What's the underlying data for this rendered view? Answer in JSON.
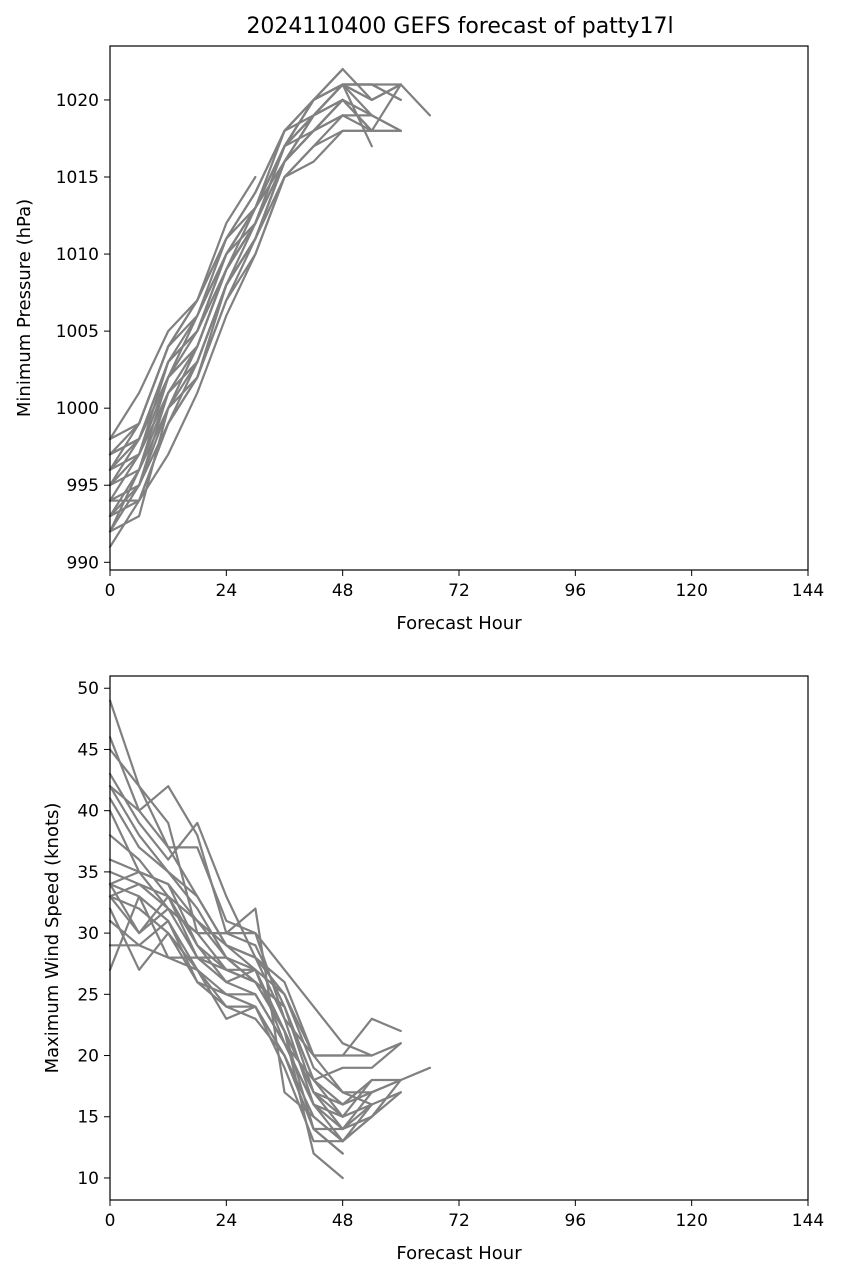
{
  "title": "2024110400 GEFS forecast of patty17l",
  "colors": {
    "member_line": "#808080",
    "axis": "#000000",
    "background": "#ffffff"
  },
  "chart_data": [
    {
      "type": "line",
      "id": "pressure",
      "title": "2024110400 GEFS forecast of patty17l",
      "xlabel": "Forecast Hour",
      "ylabel": "Minimum Pressure (hPa)",
      "xlim": [
        0,
        144
      ],
      "ylim": [
        989.5,
        1023.5
      ],
      "xticks": [
        0,
        24,
        48,
        72,
        96,
        120,
        144
      ],
      "yticks": [
        990,
        995,
        1000,
        1005,
        1010,
        1015,
        1020
      ],
      "grid": false,
      "series": [
        {
          "x": [
            0,
            6,
            12,
            18,
            24,
            30,
            36,
            42,
            48
          ],
          "values": [
            991,
            994,
            999,
            1003,
            1008,
            1012,
            1017,
            1020,
            1022
          ]
        },
        {
          "x": [
            0,
            6,
            12,
            18,
            24,
            30,
            36,
            42,
            48,
            54,
            60,
            66
          ],
          "values": [
            992,
            996,
            1001,
            1004,
            1009,
            1013,
            1016,
            1019,
            1021,
            1021,
            1021,
            1019
          ]
        },
        {
          "x": [
            0,
            6,
            12,
            18,
            24,
            30,
            36,
            42,
            48,
            54,
            60
          ],
          "values": [
            993,
            995,
            1000,
            1003,
            1008,
            1011,
            1016,
            1018,
            1020,
            1018,
            1021
          ]
        },
        {
          "x": [
            0,
            6,
            12,
            18,
            24,
            30,
            36,
            42,
            48,
            54
          ],
          "values": [
            994,
            997,
            1002,
            1005,
            1009,
            1012,
            1017,
            1019,
            1021,
            1017
          ]
        },
        {
          "x": [
            0,
            6,
            12,
            18,
            24,
            30,
            36,
            42,
            48,
            54,
            60
          ],
          "values": [
            995,
            998,
            1003,
            1006,
            1010,
            1013,
            1017,
            1020,
            1021,
            1020,
            1021
          ]
        },
        {
          "x": [
            0,
            6,
            12,
            18,
            24,
            30,
            36,
            42,
            48,
            54,
            60
          ],
          "values": [
            996,
            999,
            1004,
            1007,
            1011,
            1014,
            1018,
            1020,
            1021,
            1021,
            1020
          ]
        },
        {
          "x": [
            0,
            6,
            12,
            18,
            24,
            30
          ],
          "values": [
            998,
            1001,
            1005,
            1007,
            1012,
            1015
          ]
        },
        {
          "x": [
            0,
            6,
            12,
            18,
            24,
            30,
            36,
            42,
            48
          ],
          "values": [
            997,
            999,
            1004,
            1006,
            1011,
            1013,
            1018,
            1019,
            1020
          ]
        },
        {
          "x": [
            0,
            6,
            12,
            18,
            24,
            30,
            36,
            42,
            48,
            54,
            60
          ],
          "values": [
            992,
            993,
            1000,
            1002,
            1007,
            1010,
            1015,
            1016,
            1018,
            1018,
            1018
          ]
        },
        {
          "x": [
            0,
            6,
            12,
            18,
            24,
            30,
            36,
            42,
            48,
            54,
            60
          ],
          "values": [
            994,
            994,
            997,
            1001,
            1006,
            1010,
            1015,
            1017,
            1019,
            1019,
            1018
          ]
        },
        {
          "x": [
            0,
            6,
            12,
            18,
            24,
            30,
            36,
            42,
            48,
            54
          ],
          "values": [
            995,
            997,
            1001,
            1003,
            1008,
            1011,
            1016,
            1018,
            1020,
            1018
          ]
        },
        {
          "x": [
            0,
            6,
            12,
            18,
            24,
            30,
            36,
            42,
            48,
            54,
            60
          ],
          "values": [
            993,
            996,
            1002,
            1004,
            1009,
            1012,
            1016,
            1019,
            1021,
            1020,
            1021
          ]
        },
        {
          "x": [
            0,
            6,
            12,
            18,
            24,
            30,
            36,
            42,
            48
          ],
          "values": [
            996,
            998,
            1003,
            1005,
            1010,
            1013,
            1017,
            1018,
            1019
          ]
        },
        {
          "x": [
            0,
            6,
            12,
            18,
            24,
            30,
            36,
            42,
            48,
            54,
            60
          ],
          "values": [
            997,
            998,
            1002,
            1006,
            1010,
            1012,
            1016,
            1018,
            1019,
            1018,
            1018
          ]
        },
        {
          "x": [
            0,
            6,
            12,
            18,
            24,
            30,
            36,
            42,
            48,
            54
          ],
          "values": [
            994,
            995,
            999,
            1002,
            1007,
            1011,
            1015,
            1017,
            1018,
            1018
          ]
        },
        {
          "x": [
            0,
            6,
            12,
            18,
            24,
            30,
            36,
            42,
            48,
            54,
            60
          ],
          "values": [
            998,
            999,
            1004,
            1007,
            1011,
            1014,
            1018,
            1020,
            1022,
            1020,
            1021
          ]
        },
        {
          "x": [
            0,
            6,
            12,
            18,
            24,
            30,
            36,
            42,
            48
          ],
          "values": [
            992,
            995,
            1001,
            1003,
            1008,
            1011,
            1016,
            1019,
            1021
          ]
        },
        {
          "x": [
            0,
            6,
            12,
            18,
            24,
            30,
            36,
            42,
            48,
            54
          ],
          "values": [
            995,
            996,
            1000,
            1004,
            1009,
            1012,
            1017,
            1019,
            1020,
            1019
          ]
        },
        {
          "x": [
            0,
            6,
            12,
            18,
            24,
            30,
            36,
            42,
            48,
            54,
            60
          ],
          "values": [
            996,
            997,
            1003,
            1005,
            1010,
            1013,
            1017,
            1020,
            1021,
            1021,
            1020
          ]
        },
        {
          "x": [
            0,
            6,
            12,
            18,
            24,
            30,
            36,
            42,
            48
          ],
          "values": [
            993,
            994,
            999,
            1002,
            1008,
            1011,
            1016,
            1018,
            1020
          ]
        },
        {
          "x": [
            0,
            6,
            12,
            18,
            24,
            30,
            36,
            42,
            48,
            54,
            60
          ],
          "values": [
            997,
            998,
            1002,
            1004,
            1009,
            1012,
            1017,
            1019,
            1021,
            1019,
            1018
          ]
        }
      ]
    },
    {
      "type": "line",
      "id": "wind",
      "xlabel": "Forecast Hour",
      "ylabel": "Maximum Wind Speed (knots)",
      "xlim": [
        0,
        144
      ],
      "ylim": [
        8.2,
        51
      ],
      "xticks": [
        0,
        24,
        48,
        72,
        96,
        120,
        144
      ],
      "yticks": [
        10,
        15,
        20,
        25,
        30,
        35,
        40,
        45,
        50
      ],
      "grid": false,
      "series": [
        {
          "x": [
            0,
            6,
            12,
            18,
            24,
            30,
            36,
            42,
            48
          ],
          "values": [
            49,
            42,
            37,
            33,
            29,
            27,
            22,
            14,
            12
          ]
        },
        {
          "x": [
            0,
            6,
            12,
            18,
            24,
            30,
            36,
            42,
            48,
            54,
            60,
            66
          ],
          "values": [
            46,
            40,
            42,
            38,
            30,
            29,
            24,
            17,
            14,
            15,
            18,
            19
          ]
        },
        {
          "x": [
            0,
            6,
            12,
            18,
            24,
            30,
            36,
            42,
            48,
            54
          ],
          "values": [
            45,
            42,
            39,
            30,
            30,
            32,
            17,
            15,
            13,
            16
          ]
        },
        {
          "x": [
            0,
            6,
            12,
            18,
            24,
            30,
            36,
            42,
            48,
            54,
            60
          ],
          "values": [
            43,
            39,
            36,
            39,
            33,
            28,
            26,
            20,
            20,
            23,
            22
          ]
        },
        {
          "x": [
            0,
            6,
            12,
            18,
            24,
            30,
            36,
            42,
            48,
            54,
            60
          ],
          "values": [
            42,
            40,
            37,
            37,
            31,
            30,
            27,
            24,
            21,
            20,
            21
          ]
        },
        {
          "x": [
            0,
            6,
            12,
            18,
            24,
            30,
            36,
            42,
            48
          ],
          "values": [
            41,
            37,
            35,
            32,
            28,
            26,
            22,
            12,
            10
          ]
        },
        {
          "x": [
            0,
            6,
            12,
            18,
            24,
            30,
            36,
            42,
            48,
            54
          ],
          "values": [
            40,
            35,
            34,
            29,
            27,
            27,
            21,
            16,
            15,
            18
          ]
        },
        {
          "x": [
            0,
            6,
            12,
            18,
            24,
            30,
            36,
            42,
            48,
            54,
            60
          ],
          "values": [
            38,
            36,
            33,
            31,
            29,
            28,
            25,
            19,
            17,
            16,
            17
          ]
        },
        {
          "x": [
            0,
            6,
            12,
            18,
            24,
            30,
            36,
            42,
            48,
            54
          ],
          "values": [
            36,
            35,
            32,
            30,
            30,
            30,
            23,
            20,
            20,
            20
          ]
        },
        {
          "x": [
            0,
            6,
            12,
            18,
            24,
            30,
            36,
            42,
            48,
            54,
            60
          ],
          "values": [
            35,
            34,
            33,
            28,
            27,
            26,
            24,
            18,
            19,
            19,
            21
          ]
        },
        {
          "x": [
            0,
            6,
            12,
            18,
            24,
            30,
            36,
            42,
            48,
            54,
            60
          ],
          "values": [
            34,
            33,
            31,
            27,
            24,
            24,
            20,
            15,
            13,
            15,
            17
          ]
        },
        {
          "x": [
            0,
            6,
            12,
            18,
            24,
            30,
            36,
            42,
            48
          ],
          "values": [
            33,
            32,
            30,
            26,
            25,
            24,
            20,
            14,
            12
          ]
        },
        {
          "x": [
            0,
            6,
            12,
            18,
            24,
            30,
            36,
            42,
            48,
            54
          ],
          "values": [
            34,
            30,
            33,
            29,
            26,
            25,
            21,
            16,
            14,
            17
          ]
        },
        {
          "x": [
            0,
            6,
            12,
            18,
            24,
            30,
            36,
            42,
            48,
            54,
            60
          ],
          "values": [
            33,
            34,
            32,
            28,
            28,
            26,
            22,
            17,
            16,
            18,
            18
          ]
        },
        {
          "x": [
            0,
            6,
            12,
            18,
            24,
            30,
            36,
            42,
            48
          ],
          "values": [
            32,
            27,
            30,
            27,
            23,
            24,
            19,
            13,
            13
          ]
        },
        {
          "x": [
            0,
            6,
            12,
            18,
            24,
            30,
            36,
            42,
            48,
            54
          ],
          "values": [
            31,
            29,
            31,
            26,
            24,
            23,
            20,
            14,
            14,
            16
          ]
        },
        {
          "x": [
            0,
            6,
            12,
            18,
            24,
            30,
            36,
            42,
            48,
            54,
            60
          ],
          "values": [
            29,
            29,
            28,
            27,
            25,
            25,
            21,
            18,
            16,
            17,
            18
          ]
        },
        {
          "x": [
            0,
            6,
            12,
            18,
            24,
            30,
            36,
            42,
            48
          ],
          "values": [
            27,
            33,
            28,
            28,
            26,
            27,
            22,
            17,
            15
          ]
        },
        {
          "x": [
            0,
            6,
            12,
            18,
            24,
            30,
            36,
            42,
            48,
            54
          ],
          "values": [
            33,
            30,
            32,
            30,
            27,
            26,
            24,
            18,
            15,
            16
          ]
        },
        {
          "x": [
            0,
            6,
            12,
            18,
            24,
            30,
            36,
            42,
            48,
            54,
            60
          ],
          "values": [
            34,
            35,
            34,
            31,
            28,
            27,
            25,
            20,
            17,
            17,
            18
          ]
        },
        {
          "x": [
            0,
            6,
            12,
            18,
            24,
            30,
            36,
            42,
            48,
            54
          ],
          "values": [
            42,
            38,
            35,
            33,
            29,
            28,
            23,
            16,
            13,
            15
          ]
        }
      ]
    }
  ]
}
